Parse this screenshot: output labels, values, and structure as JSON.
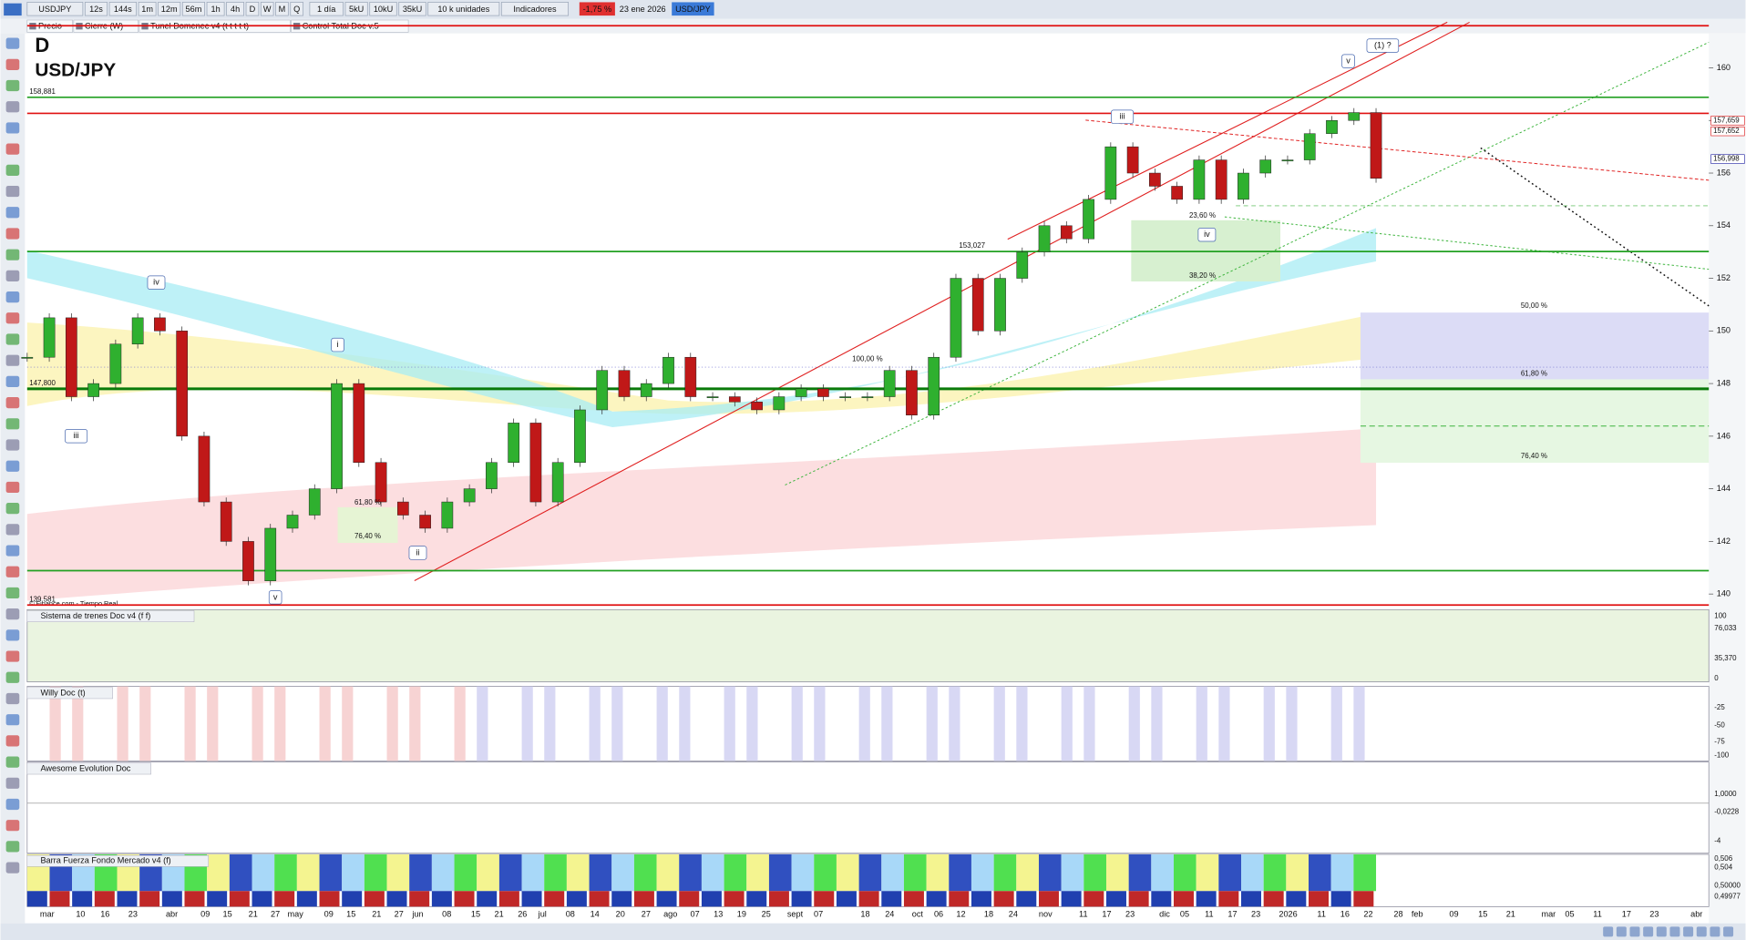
{
  "toolbar": {
    "symbol": "USDJPY",
    "periods": [
      "12s",
      "144s",
      "1m",
      "12m",
      "56m",
      "1h",
      "4h",
      "D",
      "W",
      "M",
      "Q"
    ],
    "interval": "1 día",
    "sizes": [
      "5kU",
      "10kU",
      "35kU"
    ],
    "units": "10 k unidades",
    "indicators": "Indicadores",
    "change": "-1,75 %",
    "date": "23 ene 2026",
    "ticker": "USD/JPY"
  },
  "legend": [
    "Precio",
    "Cierre (W)",
    "Tunel Domenec v4 (t t t t t)",
    "Control Total Doc v.5"
  ],
  "chart": {
    "timeframe": "D",
    "symbol": "USD/JPY",
    "source": "© Finance.com - Tiempo Real",
    "ylim": [
      139.45,
      161.86
    ],
    "yticks": [
      140,
      142,
      144,
      146,
      148,
      150,
      152,
      154,
      156,
      158,
      160
    ],
    "closes": [
      149,
      150.5,
      147.5,
      148,
      149.5,
      150.5,
      150,
      146,
      143.5,
      142,
      140.5,
      142.5,
      143,
      144,
      148,
      145,
      143.5,
      143,
      142.5,
      143.5,
      144,
      145,
      146.5,
      143.5,
      145,
      147,
      148.5,
      147.5,
      148,
      149,
      147.5,
      147.5,
      147.3,
      147,
      147.5,
      147.8,
      147.5,
      147.5,
      147.5,
      148.5,
      146.8,
      149,
      152,
      150,
      152,
      153,
      154,
      153.5,
      155,
      157,
      156,
      155.5,
      155,
      156.5,
      155,
      156,
      156.5,
      156.5,
      157.5,
      158,
      158.3,
      155.8
    ],
    "levels": [
      {
        "value": 161.6,
        "color": "#e01010"
      },
      {
        "value": 158.881,
        "color": "#22a022",
        "label": "158,881"
      },
      {
        "value": 158.27,
        "color": "#e01010"
      },
      {
        "value": 153.02,
        "color": "#22a022"
      },
      {
        "value": 147.8,
        "color": "#0a7a0a",
        "label": "147,800"
      },
      {
        "value": 140.89,
        "color": "#22a022"
      },
      {
        "value": 139.581,
        "color": "#e01010",
        "label": "139,581"
      }
    ],
    "price_tags": [
      {
        "value": 157.659,
        "label": "157,659",
        "color": "#e01010"
      },
      {
        "value": 157.652,
        "label": "157,652",
        "color": "#e01010"
      },
      {
        "value": 156.998,
        "label": "156,998",
        "color": "#1a1aa0"
      }
    ],
    "waves": [
      "iv",
      "iii",
      "i",
      "v",
      "ii",
      "iii",
      "v",
      "iv",
      "(1) ?"
    ],
    "fib_labels": [
      "100,00 %",
      "61,80 %",
      "76,40 %",
      "23,60 %",
      "38,20 %",
      "153,027",
      "50,00 %",
      "61,80 %",
      "76,40 %"
    ],
    "dates": [
      "mar",
      "10",
      "16",
      "23",
      "abr",
      "09",
      "15",
      "21",
      "27",
      "may",
      "09",
      "15",
      "21",
      "27",
      "jun",
      "08",
      "15",
      "21",
      "26",
      "jul",
      "08",
      "14",
      "20",
      "27",
      "ago",
      "07",
      "13",
      "19",
      "25",
      "sept",
      "07",
      "18",
      "24",
      "oct",
      "06",
      "12",
      "18",
      "24",
      "nov",
      "11",
      "17",
      "23",
      "dic",
      "05",
      "11",
      "17",
      "23",
      "2026",
      "11",
      "16",
      "22",
      "28",
      "feb",
      "09",
      "15",
      "21",
      "mar",
      "05",
      "11",
      "17",
      "23",
      "abr"
    ]
  },
  "panels": [
    {
      "title": "Sistema de trenes Doc v4 (f f)",
      "ticks": [
        100,
        "76,033",
        "35,370",
        0
      ]
    },
    {
      "title": "Willy Doc (t)",
      "ticks": [
        -25,
        -50,
        -75,
        -100
      ]
    },
    {
      "title": "Awesome Evolution Doc",
      "ticks": [
        "1,0000",
        "-0,0228",
        -4
      ]
    },
    {
      "title": "Barra Fuerza Fondo Mercado v4 (f)",
      "ticks": [
        "0,506",
        "0,504",
        "0,50000",
        "0,49977"
      ]
    }
  ]
}
